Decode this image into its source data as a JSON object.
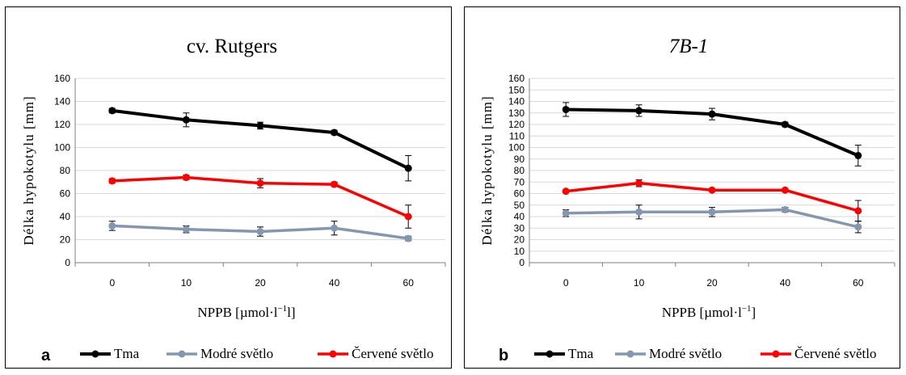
{
  "chart_data": [
    {
      "type": "line",
      "title": "cv. Rutgers",
      "title_italic": false,
      "panel_letter": "a",
      "xlabel": "NPPB [µmol·l",
      "xlabel_sup": "−1",
      "xlabel_suffix": "l]",
      "ylabel": "Délka hypokotylu [mm]",
      "ylim": [
        0,
        160
      ],
      "yticks": [
        "0",
        "20",
        "40",
        "60",
        "80",
        "100",
        "120",
        "140",
        "160"
      ],
      "categories": [
        "0",
        "10",
        "20",
        "40",
        "60"
      ],
      "grid": true,
      "legend_position": "bottom",
      "series": [
        {
          "name": "Tma",
          "color": "#000000",
          "values": [
            132,
            124,
            119,
            113,
            82
          ],
          "errors": [
            2,
            6,
            3,
            2,
            11
          ]
        },
        {
          "name": "Modré světlo",
          "color": "#8497b0",
          "values": [
            32,
            29,
            27,
            30,
            21
          ],
          "errors": [
            4,
            3,
            4,
            6,
            2
          ]
        },
        {
          "name": "Červené světlo",
          "color": "#ff0000",
          "values": [
            71,
            74,
            69,
            68,
            40
          ],
          "errors": [
            2,
            2,
            4,
            2,
            10
          ]
        }
      ]
    },
    {
      "type": "line",
      "title": "7B-1",
      "title_italic": true,
      "panel_letter": "b",
      "xlabel": "NPPB [µmol·l",
      "xlabel_sup": "−1",
      "xlabel_suffix": "]",
      "ylabel": "Délka hypokotylu [mm]",
      "ylim": [
        0,
        160
      ],
      "yticks": [
        "0",
        "10",
        "20",
        "30",
        "40",
        "50",
        "60",
        "70",
        "80",
        "90",
        "100",
        "110",
        "120",
        "130",
        "140",
        "150",
        "160"
      ],
      "categories": [
        "0",
        "10",
        "20",
        "40",
        "60"
      ],
      "grid": true,
      "legend_position": "bottom",
      "series": [
        {
          "name": "Tma",
          "color": "#000000",
          "values": [
            133,
            132,
            129,
            120,
            93
          ],
          "errors": [
            6,
            5,
            5,
            2,
            9
          ]
        },
        {
          "name": "Modré světlo",
          "color": "#8497b0",
          "values": [
            43,
            44,
            44,
            46,
            31
          ],
          "errors": [
            3,
            6,
            4,
            2,
            5
          ]
        },
        {
          "name": "Červené světlo",
          "color": "#ff0000",
          "values": [
            62,
            69,
            63,
            63,
            45
          ],
          "errors": [
            1,
            3,
            1,
            1,
            9
          ]
        }
      ]
    }
  ]
}
